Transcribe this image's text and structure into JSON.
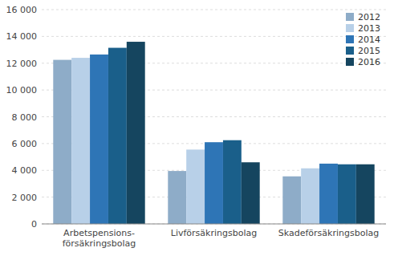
{
  "chart_data": {
    "type": "bar",
    "categories": [
      "Arbetspensions-\nförsäkringsbolag",
      "Livförsäkringsbolag",
      "Skadeförsäkringsbolag"
    ],
    "series": [
      {
        "name": "2012",
        "color": "#8eacc8",
        "values": [
          12250,
          3950,
          3550
        ]
      },
      {
        "name": "2013",
        "color": "#b8d0e8",
        "values": [
          12400,
          5550,
          4150
        ]
      },
      {
        "name": "2014",
        "color": "#2e75b6",
        "values": [
          12650,
          6100,
          4500
        ]
      },
      {
        "name": "2015",
        "color": "#1a5f8a",
        "values": [
          13150,
          6250,
          4450
        ]
      },
      {
        "name": "2016",
        "color": "#15455f",
        "values": [
          13600,
          4600,
          4450
        ]
      }
    ],
    "ylim": [
      0,
      16000
    ],
    "yticks": [
      0,
      {
        "value": 2000,
        "label": "2 000"
      },
      {
        "value": 4000,
        "label": "4 000"
      },
      {
        "value": 6000,
        "label": "6 000"
      },
      {
        "value": 8000,
        "label": "8 000"
      },
      {
        "value": 10000,
        "label": "10 000"
      },
      {
        "value": 12000,
        "label": "12 000"
      },
      {
        "value": 14000,
        "label": "14 000"
      },
      {
        "value": 16000,
        "label": "16 000"
      }
    ],
    "grid": true,
    "legend": "upper right"
  }
}
